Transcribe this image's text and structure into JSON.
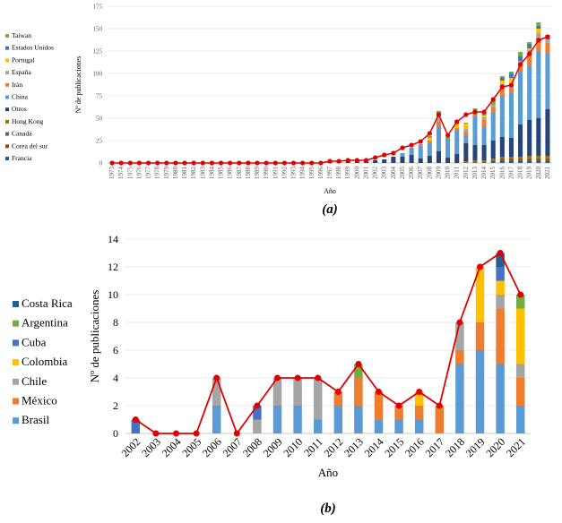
{
  "chart_data": [
    {
      "type": "bar",
      "stacked": true,
      "panel_label": "(a)",
      "xlabel": "Año",
      "ylabel": "Nº de publicaciones",
      "ylim": [
        0,
        175
      ],
      "yticks": [
        0,
        25,
        50,
        75,
        100,
        125,
        150,
        175
      ],
      "grid": true,
      "legend": "left",
      "categories": [
        "1973",
        "1974",
        "1975",
        "1976",
        "1977",
        "1978",
        "1979",
        "1980",
        "1981",
        "1982",
        "1983",
        "1984",
        "1985",
        "1986",
        "1987",
        "1988",
        "1989",
        "1990",
        "1991",
        "1992",
        "1993",
        "1994",
        "1995",
        "1996",
        "1997",
        "1998",
        "1999",
        "2000",
        "2001",
        "2002",
        "2003",
        "2004",
        "2005",
        "2006",
        "2007",
        "2008",
        "2009",
        "2010",
        "2011",
        "2012",
        "2013",
        "2014",
        "2015",
        "2016",
        "2017",
        "2018",
        "2019",
        "2020",
        "2021"
      ],
      "series": [
        {
          "name": "Francia",
          "color": "#255E91",
          "values": [
            0,
            0,
            0,
            0,
            0,
            0,
            0,
            0,
            0,
            0,
            0,
            0,
            0,
            0,
            0,
            0,
            0,
            0,
            0,
            0,
            0,
            0,
            0,
            0,
            0,
            0,
            0,
            0,
            0,
            0,
            0,
            0,
            0,
            0,
            0,
            0,
            0,
            0,
            0,
            0,
            0,
            0,
            2,
            2,
            2,
            2,
            2,
            2,
            2
          ]
        },
        {
          "name": "Corea del sur",
          "color": "#9E480E",
          "values": [
            0,
            0,
            0,
            0,
            0,
            0,
            0,
            0,
            0,
            0,
            0,
            0,
            0,
            0,
            0,
            0,
            0,
            0,
            0,
            0,
            0,
            0,
            0,
            0,
            0,
            0,
            0,
            0,
            0,
            0,
            0,
            0,
            0,
            0,
            0,
            0,
            0,
            0,
            0,
            0,
            0,
            0,
            0,
            2,
            2,
            2,
            2,
            2,
            2
          ]
        },
        {
          "name": "Canadá",
          "color": "#636363",
          "values": [
            0,
            0,
            0,
            0,
            0,
            0,
            0,
            0,
            0,
            0,
            0,
            0,
            0,
            0,
            0,
            0,
            0,
            0,
            0,
            0,
            0,
            0,
            0,
            0,
            0,
            0,
            0,
            0,
            0,
            0,
            0,
            0,
            0,
            0,
            0,
            0,
            0,
            0,
            0,
            0,
            1,
            1,
            1,
            1,
            1,
            1,
            1,
            1,
            1
          ]
        },
        {
          "name": "Hong Kong",
          "color": "#997300",
          "values": [
            0,
            0,
            0,
            0,
            0,
            0,
            0,
            0,
            0,
            0,
            0,
            0,
            0,
            0,
            0,
            0,
            0,
            0,
            0,
            0,
            0,
            0,
            0,
            0,
            0,
            0,
            0,
            0,
            0,
            0,
            0,
            0,
            0,
            0,
            0,
            0,
            0,
            0,
            0,
            2,
            2,
            2,
            2,
            2,
            2,
            2,
            3,
            3,
            3
          ]
        },
        {
          "name": "Otros",
          "color": "#264478",
          "values": [
            1,
            0,
            0,
            0,
            0,
            0,
            0,
            0,
            0,
            0,
            0,
            0,
            0,
            0,
            0,
            0,
            0,
            0,
            0,
            0,
            0,
            0,
            0,
            0,
            2,
            2,
            2,
            3,
            3,
            3,
            4,
            7,
            7,
            9,
            5,
            8,
            13,
            6,
            10,
            20,
            17,
            17,
            20,
            22,
            21,
            36,
            40,
            42,
            52
          ]
        },
        {
          "name": "China",
          "color": "#5B9BD5",
          "values": [
            0,
            0,
            0,
            0,
            0,
            0,
            0,
            0,
            0,
            0,
            0,
            0,
            0,
            0,
            0,
            0,
            0,
            0,
            0,
            0,
            0,
            0,
            0,
            0,
            0,
            0,
            0,
            0,
            0,
            0,
            0,
            0,
            4,
            8,
            14,
            14,
            28,
            21,
            26,
            8,
            32,
            21,
            31,
            46,
            50,
            60,
            60,
            75,
            62
          ]
        },
        {
          "name": "Irán",
          "color": "#ED7D31",
          "values": [
            0,
            0,
            0,
            0,
            0,
            0,
            0,
            0,
            0,
            0,
            0,
            0,
            0,
            0,
            0,
            0,
            0,
            0,
            0,
            0,
            0,
            0,
            0,
            0,
            0,
            0,
            0,
            0,
            0,
            0,
            0,
            0,
            0,
            0,
            0,
            3,
            5,
            0,
            3,
            5,
            4,
            7,
            6,
            10,
            5,
            8,
            15,
            15,
            12
          ]
        },
        {
          "name": "España",
          "color": "#A5A5A5",
          "values": [
            0,
            0,
            0,
            0,
            0,
            0,
            0,
            0,
            0,
            0,
            0,
            0,
            0,
            0,
            0,
            0,
            0,
            0,
            0,
            0,
            0,
            0,
            0,
            0,
            0,
            0,
            0,
            0,
            0,
            0,
            0,
            0,
            0,
            0,
            1,
            0,
            4,
            0,
            0,
            3,
            3,
            3,
            3,
            3,
            6,
            3,
            3,
            5,
            4
          ]
        },
        {
          "name": "Portugal",
          "color": "#FFC000",
          "values": [
            0,
            0,
            0,
            0,
            0,
            0,
            0,
            0,
            0,
            0,
            0,
            0,
            0,
            0,
            0,
            0,
            0,
            0,
            0,
            0,
            0,
            0,
            0,
            0,
            0,
            0,
            0,
            0,
            0,
            0,
            0,
            0,
            0,
            0,
            0,
            3,
            3,
            0,
            5,
            6,
            0,
            2,
            0,
            4,
            6,
            0,
            2,
            5,
            0
          ]
        },
        {
          "name": "Estados Unidos",
          "color": "#4472C4",
          "values": [
            0,
            0,
            0,
            0,
            0,
            0,
            0,
            0,
            0,
            0,
            0,
            0,
            0,
            0,
            0,
            0,
            0,
            0,
            0,
            0,
            0,
            0,
            0,
            0,
            0,
            0,
            0,
            0,
            0,
            0,
            0,
            0,
            0,
            0,
            0,
            0,
            0,
            0,
            0,
            0,
            0,
            0,
            0,
            3,
            5,
            5,
            5,
            3,
            5
          ]
        },
        {
          "name": "Taiwan",
          "color": "#70AD47",
          "values": [
            0,
            0,
            0,
            0,
            0,
            0,
            0,
            0,
            0,
            0,
            0,
            0,
            0,
            0,
            0,
            0,
            0,
            0,
            0,
            0,
            0,
            0,
            0,
            0,
            0,
            0,
            0,
            0,
            0,
            0,
            0,
            0,
            0,
            0,
            1,
            2,
            5,
            2,
            4,
            1,
            2,
            3,
            5,
            2,
            2,
            5,
            2,
            4,
            0
          ]
        }
      ],
      "line": {
        "color": "#E00000",
        "values": [
          0,
          0,
          0,
          0,
          0,
          0,
          0,
          0,
          0,
          0,
          0,
          0,
          0,
          0,
          0,
          0,
          0,
          0,
          0,
          0,
          0,
          0,
          0,
          0,
          2,
          2,
          3,
          3,
          3,
          6,
          9,
          11,
          17,
          20,
          24,
          33,
          54,
          31,
          46,
          54,
          57,
          57,
          71,
          85,
          87,
          110,
          122,
          137,
          141
        ]
      }
    },
    {
      "type": "bar",
      "stacked": true,
      "panel_label": "(b)",
      "xlabel": "Año",
      "ylabel": "Nº de publicaciones",
      "ylim": [
        0,
        14
      ],
      "yticks": [
        0,
        2,
        4,
        6,
        8,
        10,
        12,
        14
      ],
      "grid": true,
      "legend": "left",
      "categories": [
        "2002",
        "2003",
        "2004",
        "2005",
        "2006",
        "2007",
        "2008",
        "2009",
        "2010",
        "2011",
        "2012",
        "2013",
        "2014",
        "2015",
        "2016",
        "2017",
        "2018",
        "2019",
        "2020",
        "2021"
      ],
      "series": [
        {
          "name": "Brasil",
          "color": "#5B9BD5",
          "values": [
            0,
            0,
            0,
            0,
            2,
            0,
            0,
            2,
            2,
            1,
            2,
            2,
            1,
            1,
            1,
            0,
            5,
            6,
            5,
            2
          ]
        },
        {
          "name": "México",
          "color": "#ED7D31",
          "values": [
            0,
            0,
            0,
            0,
            0,
            0,
            0,
            0,
            0,
            0,
            1,
            2,
            2,
            1,
            1,
            2,
            1,
            2,
            4,
            2
          ]
        },
        {
          "name": "Chile",
          "color": "#A5A5A5",
          "values": [
            0,
            0,
            0,
            0,
            2,
            0,
            1,
            2,
            2,
            3,
            0,
            0,
            0,
            0,
            0,
            0,
            2,
            0,
            1,
            1
          ]
        },
        {
          "name": "Colombia",
          "color": "#FFC000",
          "values": [
            0,
            0,
            0,
            0,
            0,
            0,
            0,
            0,
            0,
            0,
            0,
            0,
            0,
            0,
            1,
            0,
            0,
            4,
            1,
            4
          ]
        },
        {
          "name": "Cuba",
          "color": "#4472C4",
          "values": [
            1,
            0,
            0,
            0,
            0,
            0,
            1,
            0,
            0,
            0,
            0,
            0,
            0,
            0,
            0,
            0,
            0,
            0,
            1,
            0
          ]
        },
        {
          "name": "Argentina",
          "color": "#70AD47",
          "values": [
            0,
            0,
            0,
            0,
            0,
            0,
            0,
            0,
            0,
            0,
            0,
            1,
            0,
            0,
            0,
            0,
            0,
            0,
            0,
            1
          ]
        },
        {
          "name": "Costa Rica",
          "color": "#255E91",
          "values": [
            0,
            0,
            0,
            0,
            0,
            0,
            0,
            0,
            0,
            0,
            0,
            0,
            0,
            0,
            0,
            0,
            0,
            0,
            1,
            0
          ]
        }
      ],
      "line": {
        "color": "#E00000",
        "values": [
          1,
          0,
          0,
          0,
          4,
          0,
          2,
          4,
          4,
          4,
          3,
          5,
          3,
          2,
          3,
          2,
          8,
          12,
          13,
          10
        ]
      }
    }
  ]
}
